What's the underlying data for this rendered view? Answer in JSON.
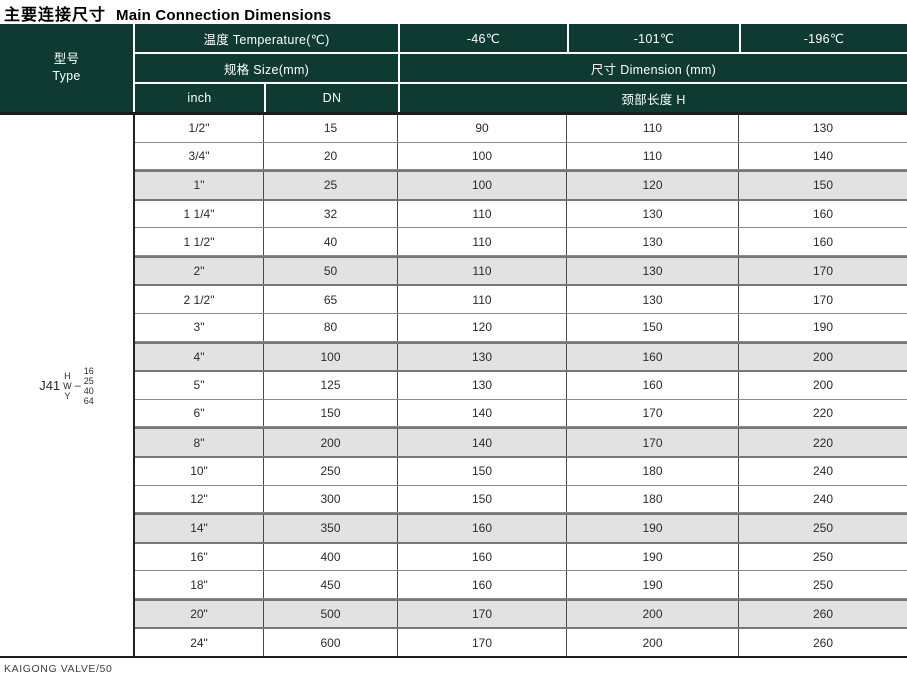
{
  "title": {
    "zh": "主要连接尺寸",
    "en": "Main Connection Dimensions"
  },
  "colors": {
    "header_green": "#0e3a32",
    "row_shade": "#e2e2e2"
  },
  "header": {
    "type_label_zh": "型号",
    "type_label_en": "Type",
    "temperature_label": "温度 Temperature(℃)",
    "temp_cols": [
      "-46℃",
      "-101℃",
      "-196℃"
    ],
    "size_label": "规格 Size(mm)",
    "dimension_label": "尺寸 Dimension (mm)",
    "inch_label": "inch",
    "dn_label": "DN",
    "neck_length_label": "颈部长度 H"
  },
  "type_designation": {
    "prefix": "J41",
    "variants": "H\nW\nY",
    "dash": "–",
    "ratings": "16\n25\n40\n64"
  },
  "table": {
    "rows": [
      {
        "inch": "1/2\"",
        "dn": "15",
        "t46": "90",
        "t101": "110",
        "t196": "130",
        "shaded": false
      },
      {
        "inch": "3/4\"",
        "dn": "20",
        "t46": "100",
        "t101": "110",
        "t196": "140",
        "shaded": false
      },
      {
        "inch": "1\"",
        "dn": "25",
        "t46": "100",
        "t101": "120",
        "t196": "150",
        "shaded": true
      },
      {
        "inch": "1 1/4\"",
        "dn": "32",
        "t46": "110",
        "t101": "130",
        "t196": "160",
        "shaded": false
      },
      {
        "inch": "1 1/2\"",
        "dn": "40",
        "t46": "110",
        "t101": "130",
        "t196": "160",
        "shaded": false
      },
      {
        "inch": "2\"",
        "dn": "50",
        "t46": "110",
        "t101": "130",
        "t196": "170",
        "shaded": true
      },
      {
        "inch": "2 1/2\"",
        "dn": "65",
        "t46": "110",
        "t101": "130",
        "t196": "170",
        "shaded": false
      },
      {
        "inch": "3\"",
        "dn": "80",
        "t46": "120",
        "t101": "150",
        "t196": "190",
        "shaded": false
      },
      {
        "inch": "4\"",
        "dn": "100",
        "t46": "130",
        "t101": "160",
        "t196": "200",
        "shaded": true
      },
      {
        "inch": "5\"",
        "dn": "125",
        "t46": "130",
        "t101": "160",
        "t196": "200",
        "shaded": false
      },
      {
        "inch": "6\"",
        "dn": "150",
        "t46": "140",
        "t101": "170",
        "t196": "220",
        "shaded": false
      },
      {
        "inch": "8\"",
        "dn": "200",
        "t46": "140",
        "t101": "170",
        "t196": "220",
        "shaded": true
      },
      {
        "inch": "10\"",
        "dn": "250",
        "t46": "150",
        "t101": "180",
        "t196": "240",
        "shaded": false
      },
      {
        "inch": "12\"",
        "dn": "300",
        "t46": "150",
        "t101": "180",
        "t196": "240",
        "shaded": false
      },
      {
        "inch": "14\"",
        "dn": "350",
        "t46": "160",
        "t101": "190",
        "t196": "250",
        "shaded": true
      },
      {
        "inch": "16\"",
        "dn": "400",
        "t46": "160",
        "t101": "190",
        "t196": "250",
        "shaded": false
      },
      {
        "inch": "18\"",
        "dn": "450",
        "t46": "160",
        "t101": "190",
        "t196": "250",
        "shaded": false
      },
      {
        "inch": "20\"",
        "dn": "500",
        "t46": "170",
        "t101": "200",
        "t196": "260",
        "shaded": true
      },
      {
        "inch": "24\"",
        "dn": "600",
        "t46": "170",
        "t101": "200",
        "t196": "260",
        "shaded": false
      }
    ]
  },
  "footer": {
    "text": "KAIGONG VALVE/50"
  }
}
